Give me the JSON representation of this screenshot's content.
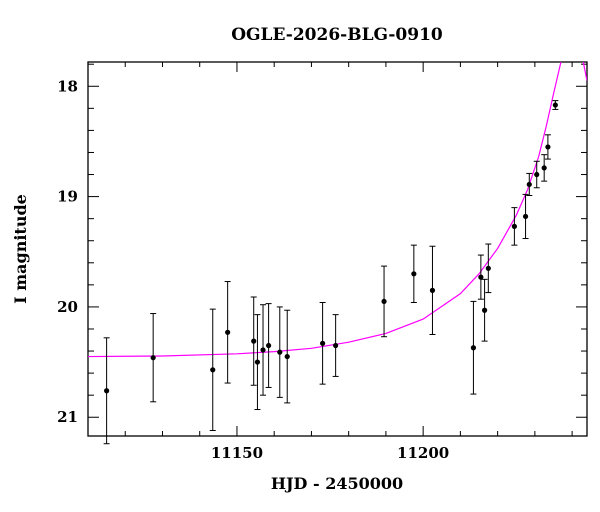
{
  "chart_data": {
    "type": "scatter",
    "title": "OGLE-2026-BLG-0910",
    "xlabel": "HJD - 2450000",
    "ylabel": "I magnitude",
    "xlim": [
      11110,
      11244
    ],
    "ylim": [
      21.17,
      17.78
    ],
    "y_inverted": true,
    "x_ticks": [
      11150,
      11200
    ],
    "x_tick_labels": [
      "11150",
      "11200"
    ],
    "y_ticks": [
      18,
      19,
      20,
      21
    ],
    "y_tick_labels": [
      "18",
      "19",
      "20",
      "21"
    ],
    "grid": false,
    "colors": {
      "points": "#000000",
      "model": "#ff00ff"
    },
    "series": [
      {
        "kind": "points_with_errorbars",
        "points": [
          {
            "x": 11115.0,
            "y": 20.76,
            "err": 0.48
          },
          {
            "x": 11127.5,
            "y": 20.46,
            "err": 0.4
          },
          {
            "x": 11143.5,
            "y": 20.57,
            "err": 0.55
          },
          {
            "x": 11147.5,
            "y": 20.23,
            "err": 0.46
          },
          {
            "x": 11154.5,
            "y": 20.31,
            "err": 0.4
          },
          {
            "x": 11155.5,
            "y": 20.5,
            "err": 0.43
          },
          {
            "x": 11157.0,
            "y": 20.39,
            "err": 0.41
          },
          {
            "x": 11158.5,
            "y": 20.35,
            "err": 0.38
          },
          {
            "x": 11161.5,
            "y": 20.41,
            "err": 0.41
          },
          {
            "x": 11163.5,
            "y": 20.45,
            "err": 0.42
          },
          {
            "x": 11173.0,
            "y": 20.33,
            "err": 0.37
          },
          {
            "x": 11176.5,
            "y": 20.35,
            "err": 0.28
          },
          {
            "x": 11189.5,
            "y": 19.95,
            "err": 0.32
          },
          {
            "x": 11197.5,
            "y": 19.7,
            "err": 0.26
          },
          {
            "x": 11202.5,
            "y": 19.85,
            "err": 0.4
          },
          {
            "x": 11213.5,
            "y": 20.37,
            "err": 0.42
          },
          {
            "x": 11215.5,
            "y": 19.73,
            "err": 0.2
          },
          {
            "x": 11216.5,
            "y": 20.03,
            "err": 0.28
          },
          {
            "x": 11217.5,
            "y": 19.65,
            "err": 0.22
          },
          {
            "x": 11224.5,
            "y": 19.27,
            "err": 0.17
          },
          {
            "x": 11227.5,
            "y": 19.18,
            "err": 0.2
          },
          {
            "x": 11228.5,
            "y": 18.89,
            "err": 0.1
          },
          {
            "x": 11230.5,
            "y": 18.8,
            "err": 0.12
          },
          {
            "x": 11232.5,
            "y": 18.74,
            "err": 0.12
          },
          {
            "x": 11233.5,
            "y": 18.55,
            "err": 0.11
          },
          {
            "x": 11235.5,
            "y": 18.17,
            "err": 0.04
          }
        ]
      },
      {
        "kind": "model_curve",
        "points": [
          {
            "x": 11110,
            "y": 20.45
          },
          {
            "x": 11130,
            "y": 20.445
          },
          {
            "x": 11150,
            "y": 20.425
          },
          {
            "x": 11160,
            "y": 20.405
          },
          {
            "x": 11170,
            "y": 20.375
          },
          {
            "x": 11180,
            "y": 20.32
          },
          {
            "x": 11190,
            "y": 20.24
          },
          {
            "x": 11200,
            "y": 20.11
          },
          {
            "x": 11210,
            "y": 19.88
          },
          {
            "x": 11215,
            "y": 19.7
          },
          {
            "x": 11220,
            "y": 19.47
          },
          {
            "x": 11225,
            "y": 19.17
          },
          {
            "x": 11228,
            "y": 18.94
          },
          {
            "x": 11231,
            "y": 18.64
          },
          {
            "x": 11233,
            "y": 18.37
          },
          {
            "x": 11235,
            "y": 18.07
          },
          {
            "x": 11237,
            "y": 17.78
          }
        ]
      },
      {
        "kind": "model_curve_right",
        "points": [
          {
            "x": 11243,
            "y": 17.78
          },
          {
            "x": 11244,
            "y": 17.95
          }
        ]
      }
    ]
  }
}
